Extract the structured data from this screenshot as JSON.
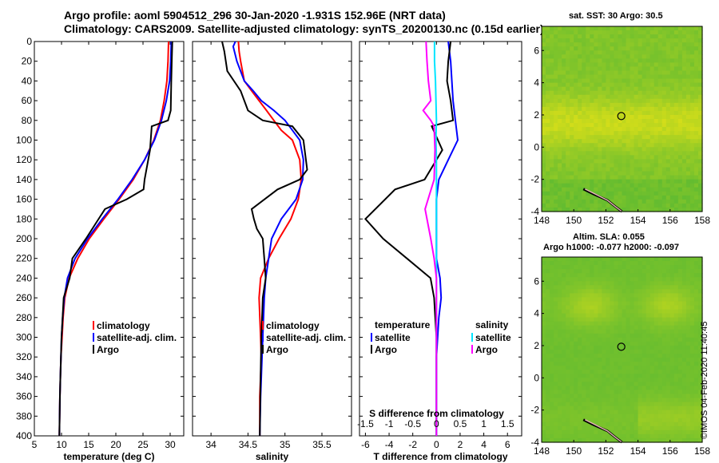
{
  "title_line1": "Argo profile: aoml 5904512_296 30-Jan-2020 -1.931S 152.96E (NRT data)",
  "title_line2": "Climatology: CARS2009. Satellite-adjusted climatology: synTS_20200130.nc (0.15d earlier)",
  "colors": {
    "climatology": "#ff0000",
    "satellite": "#0000ff",
    "argo": "#000000",
    "argo_diff": "#ff00ff",
    "sat_diff": "#00e5ff"
  },
  "depth_ticks": [
    "0",
    "20",
    "40",
    "60",
    "80",
    "100",
    "120",
    "140",
    "160",
    "180",
    "200",
    "220",
    "240",
    "260",
    "280",
    "300",
    "320",
    "340",
    "360",
    "380",
    "400"
  ],
  "chart_data": [
    {
      "type": "line",
      "id": "temperature",
      "xlabel": "temperature (deg C)",
      "ylabel": "depth",
      "xlim": [
        5,
        32.5
      ],
      "ylim": [
        400,
        0
      ],
      "xticks": [
        5,
        10,
        15,
        20,
        25,
        30
      ],
      "xtick_labels": [
        "5",
        "10",
        "15",
        "20",
        "25",
        "30"
      ],
      "legend": [
        "climatology",
        "satellite-adj. clim.",
        "Argo"
      ],
      "series": [
        {
          "name": "climatology",
          "color": "#ff0000",
          "x": [
            29.7,
            29.6,
            29.4,
            28.9,
            28.2,
            27.0,
            25.3,
            23.2,
            20.6,
            17.8,
            15.1,
            13.0,
            11.4,
            10.6,
            10.3,
            10.1,
            9.9,
            9.8,
            9.7,
            9.6
          ],
          "y": [
            0,
            20,
            40,
            60,
            80,
            100,
            120,
            140,
            160,
            180,
            200,
            220,
            240,
            260,
            280,
            300,
            320,
            340,
            360,
            400
          ]
        },
        {
          "name": "satellite-adj. clim.",
          "color": "#0000ff",
          "x": [
            30.2,
            30.1,
            29.9,
            29.3,
            28.4,
            27.1,
            25.3,
            23.0,
            20.4,
            17.5,
            14.8,
            12.5,
            11.1,
            10.5,
            10.2,
            10.0,
            9.9,
            9.8,
            9.7,
            9.6
          ],
          "y": [
            0,
            20,
            40,
            60,
            80,
            100,
            120,
            140,
            160,
            180,
            200,
            220,
            240,
            260,
            280,
            300,
            320,
            340,
            360,
            400
          ]
        },
        {
          "name": "Argo",
          "color": "#000000",
          "x": [
            30.4,
            30.3,
            30.2,
            30.1,
            29.6,
            26.6,
            26.3,
            25.3,
            25.1,
            22.0,
            18.0,
            14.5,
            12.0,
            11.5,
            10.4,
            10.0,
            9.9,
            9.8,
            9.7,
            9.6
          ],
          "y": [
            0,
            20,
            40,
            70,
            80,
            86,
            110,
            140,
            150,
            160,
            170,
            200,
            220,
            240,
            260,
            300,
            320,
            340,
            360,
            400
          ]
        }
      ]
    },
    {
      "type": "line",
      "id": "salinity",
      "xlabel": "salinity",
      "ylabel": "depth",
      "xlim": [
        33.75,
        35.9
      ],
      "ylim": [
        400,
        0
      ],
      "xticks": [
        34,
        34.5,
        35,
        35.5
      ],
      "xtick_labels": [
        "34",
        "34.5",
        "35",
        "35.5"
      ],
      "legend": [
        "climatology",
        "satellite-adj. clim.",
        "Argo"
      ],
      "series": [
        {
          "name": "climatology",
          "color": "#ff0000",
          "x": [
            34.37,
            34.38,
            34.4,
            34.45,
            34.55,
            34.65,
            34.75,
            34.85,
            34.95,
            35.1,
            35.2,
            35.22,
            35.18,
            35.08,
            34.92,
            34.78,
            34.67,
            34.65,
            34.67,
            34.68,
            34.67,
            34.66,
            34.66
          ],
          "y": [
            0,
            10,
            20,
            40,
            50,
            60,
            70,
            80,
            90,
            100,
            120,
            140,
            160,
            180,
            200,
            220,
            240,
            260,
            300,
            320,
            340,
            360,
            400
          ]
        },
        {
          "name": "satellite-adj. clim.",
          "color": "#0000ff",
          "x": [
            34.33,
            34.3,
            34.35,
            34.45,
            34.57,
            34.68,
            34.85,
            35.0,
            35.1,
            35.2,
            35.25,
            35.24,
            35.15,
            34.95,
            34.82,
            34.78,
            34.74,
            34.72,
            34.7,
            34.69,
            34.68,
            34.67,
            34.66
          ],
          "y": [
            0,
            5,
            20,
            40,
            50,
            60,
            70,
            80,
            90,
            100,
            120,
            140,
            160,
            180,
            200,
            220,
            240,
            260,
            300,
            320,
            340,
            360,
            400
          ]
        },
        {
          "name": "Argo",
          "color": "#000000",
          "x": [
            34.15,
            34.18,
            34.22,
            34.4,
            34.5,
            34.7,
            35.1,
            35.25,
            35.3,
            35.2,
            34.9,
            34.55,
            34.58,
            34.62,
            34.7,
            34.72,
            34.74,
            34.7,
            34.68,
            34.67,
            34.66
          ],
          "y": [
            0,
            10,
            30,
            50,
            70,
            80,
            86,
            100,
            130,
            140,
            150,
            170,
            180,
            190,
            200,
            220,
            240,
            260,
            300,
            340,
            400
          ]
        }
      ]
    },
    {
      "type": "line",
      "id": "difference",
      "xlabel": "T difference from climatology",
      "xlabel_top": "S difference from climatology",
      "ylabel": "depth",
      "xlim": [
        -6.5,
        7.2
      ],
      "ylim": [
        400,
        0
      ],
      "xticks": [
        -6,
        -4,
        -2,
        0,
        2,
        4,
        6
      ],
      "xtick_labels": [
        "-6",
        "-4",
        "-2",
        "0",
        "2",
        "4",
        "6"
      ],
      "s_xticks": [
        -1.5,
        -1,
        -0.5,
        0,
        0.5,
        1,
        1.5
      ],
      "s_xtick_labels": [
        "-1.5",
        "-1",
        "-0.5",
        "0",
        "0.5",
        "1",
        "1.5"
      ],
      "legend_temperature": {
        "title": "temperature",
        "items": [
          "satellite",
          "Argo"
        ]
      },
      "legend_salinity": {
        "title": "salinity",
        "items": [
          "satellite",
          "Argo"
        ]
      },
      "series": [
        {
          "name": "T satellite",
          "color": "#0000ff",
          "x": [
            1.0,
            1.2,
            1.3,
            1.4,
            1.6,
            1.8,
            1.0,
            0.2,
            0,
            0,
            0,
            0,
            0.3,
            0.4,
            0.2,
            0.1,
            0,
            0,
            0,
            0
          ],
          "y": [
            0,
            20,
            40,
            60,
            80,
            100,
            120,
            140,
            160,
            180,
            200,
            220,
            240,
            260,
            280,
            300,
            320,
            340,
            360,
            400
          ]
        },
        {
          "name": "T Argo",
          "color": "#000000",
          "x": [
            1.2,
            1.0,
            0.9,
            1.2,
            1.4,
            -0.4,
            0.5,
            -1.0,
            -3.5,
            -6.0,
            -4.5,
            -2.5,
            -0.5,
            -0.2,
            -0.1,
            0,
            0,
            0,
            0,
            0
          ],
          "y": [
            0,
            20,
            40,
            60,
            80,
            86,
            110,
            140,
            150,
            180,
            200,
            220,
            240,
            260,
            280,
            300,
            320,
            340,
            360,
            400
          ]
        },
        {
          "name": "S satellite",
          "color": "#00e5ff",
          "x": [
            -0.04,
            -0.04,
            -0.02,
            -0.01,
            0,
            -0.01,
            0,
            0,
            0,
            0,
            0,
            0,
            0,
            0,
            0,
            0,
            0,
            0,
            0
          ],
          "y": [
            0,
            20,
            40,
            60,
            80,
            100,
            120,
            140,
            160,
            180,
            200,
            220,
            240,
            260,
            280,
            300,
            340,
            360,
            400
          ]
        },
        {
          "name": "S Argo",
          "color": "#ff00ff",
          "x": [
            -0.22,
            -0.2,
            -0.17,
            -0.12,
            -0.28,
            -0.12,
            -0.05,
            -0.03,
            -0.05,
            -0.24,
            -0.12,
            -0.05,
            0,
            0,
            0,
            0,
            0,
            0,
            0
          ],
          "y": [
            0,
            20,
            40,
            60,
            70,
            80,
            86,
            110,
            140,
            170,
            200,
            220,
            240,
            260,
            280,
            300,
            340,
            360,
            400
          ]
        }
      ]
    },
    {
      "type": "heatmap",
      "id": "sst_map",
      "title": "sat. SST: 30 Argo: 30.5",
      "xlim": [
        148,
        158
      ],
      "ylim": [
        -4,
        7.5
      ],
      "xticks": [
        148,
        150,
        152,
        154,
        156,
        158
      ],
      "xtick_labels": [
        "148",
        "150",
        "152",
        "154",
        "156",
        "158"
      ],
      "yticks": [
        -4,
        -2,
        0,
        2,
        4,
        6
      ],
      "ytick_labels": [
        "-4",
        "-2",
        "0",
        "2",
        "4",
        "6"
      ],
      "float_position": {
        "lon": 152.96,
        "lat": 1.931
      }
    },
    {
      "type": "heatmap",
      "id": "sla_map",
      "title_line1": "Altim. SLA: 0.055",
      "title_line2": "Argo h1000: -0.077 h2000: -0.097",
      "xlim": [
        148,
        158
      ],
      "ylim": [
        -4,
        7.5
      ],
      "xticks": [
        148,
        150,
        152,
        154,
        156,
        158
      ],
      "xtick_labels": [
        "148",
        "150",
        "152",
        "154",
        "156",
        "158"
      ],
      "yticks": [
        -4,
        -2,
        0,
        2,
        4,
        6
      ],
      "ytick_labels": [
        "-4",
        "-2",
        "0",
        "2",
        "4",
        "6"
      ],
      "float_position": {
        "lon": 152.96,
        "lat": 1.931
      }
    }
  ],
  "stamp": "©IMOS 04-Feb-2020 11:40:45"
}
